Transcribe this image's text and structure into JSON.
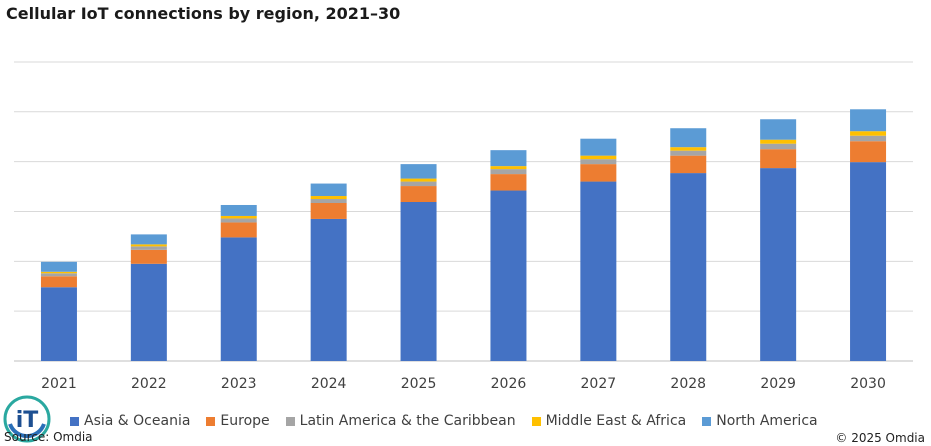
{
  "chart_data": {
    "type": "bar",
    "stacked": true,
    "title": "Cellular IoT connections by region, 2021–30",
    "xlabel": "",
    "ylabel": "",
    "ylim": [
      0,
      6.4
    ],
    "gridlines": [
      0,
      1,
      2,
      3,
      4,
      5,
      6
    ],
    "categories": [
      "2021",
      "2022",
      "2023",
      "2024",
      "2025",
      "2026",
      "2027",
      "2028",
      "2029",
      "2030"
    ],
    "series": [
      {
        "name": "Asia & Oceania",
        "color": "#4472C4",
        "values": [
          1.48,
          1.95,
          2.48,
          2.85,
          3.19,
          3.42,
          3.6,
          3.77,
          3.87,
          3.99
        ]
      },
      {
        "name": "Europe",
        "color": "#ED7D31",
        "values": [
          0.22,
          0.28,
          0.3,
          0.32,
          0.32,
          0.33,
          0.35,
          0.35,
          0.38,
          0.42
        ]
      },
      {
        "name": "Latin America & the Caribbean",
        "color": "#A5A5A5",
        "values": [
          0.06,
          0.07,
          0.08,
          0.08,
          0.09,
          0.1,
          0.1,
          0.1,
          0.11,
          0.11
        ]
      },
      {
        "name": "Middle East & Africa",
        "color": "#FFC000",
        "values": [
          0.03,
          0.04,
          0.05,
          0.06,
          0.06,
          0.06,
          0.07,
          0.07,
          0.08,
          0.09
        ]
      },
      {
        "name": "North America",
        "color": "#5B9BD5",
        "values": [
          0.2,
          0.2,
          0.22,
          0.25,
          0.29,
          0.32,
          0.34,
          0.38,
          0.41,
          0.44
        ]
      }
    ]
  },
  "footer": {
    "source": "Source: Omdia",
    "copyright": "© 2025 Omdia"
  },
  "logo_text": "iT"
}
